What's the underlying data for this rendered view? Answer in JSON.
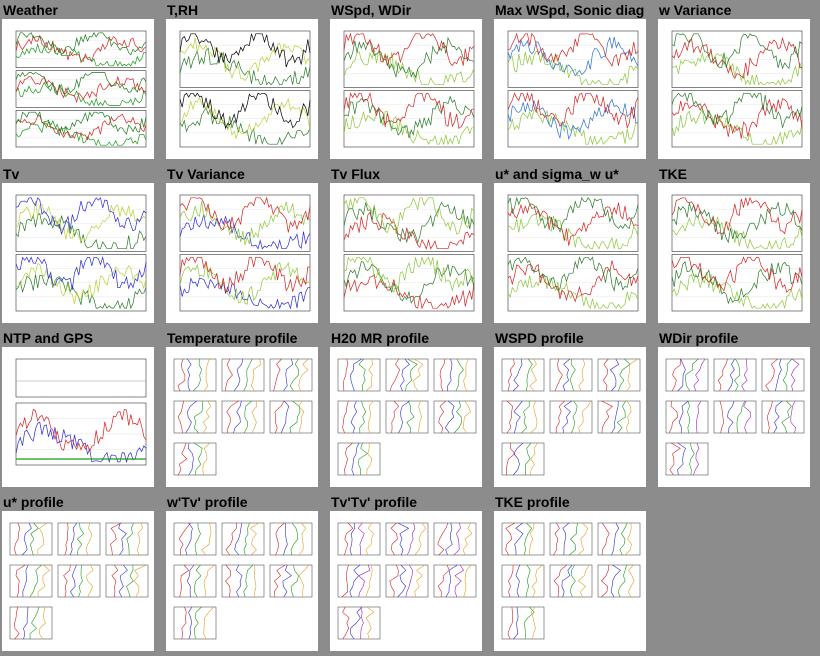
{
  "page_title": "",
  "tiles": [
    {
      "title": "Weather",
      "kind": "ts3",
      "colors": [
        "#1a9a1a",
        "#d62020",
        "#1a7a1a"
      ]
    },
    {
      "title": "T,RH",
      "kind": "ts2",
      "colors": [
        "#2a7a2a",
        "#b8d23a",
        "#000000"
      ]
    },
    {
      "title": "WSpd, WDir",
      "kind": "ts2",
      "colors": [
        "#8cc63a",
        "#2a7a2a",
        "#d62020"
      ]
    },
    {
      "title": "Max WSpd, Sonic diag",
      "kind": "ts2",
      "colors": [
        "#8cc63a",
        "#2a6fd6",
        "#d62020"
      ]
    },
    {
      "title": "w Variance",
      "kind": "ts2",
      "colors": [
        "#8cc63a",
        "#d62020",
        "#2a7a2a"
      ]
    },
    {
      "title": "Tv",
      "kind": "ts2",
      "colors": [
        "#2a7a2a",
        "#b8d23a",
        "#2a2ad6"
      ]
    },
    {
      "title": "Tv Variance",
      "kind": "ts2",
      "colors": [
        "#2a2ad6",
        "#8cc63a",
        "#d62020"
      ]
    },
    {
      "title": "Tv Flux",
      "kind": "ts2",
      "colors": [
        "#d62020",
        "#2a7a2a",
        "#8cc63a"
      ]
    },
    {
      "title": "u* and sigma_w u*",
      "kind": "ts2",
      "colors": [
        "#8cc63a",
        "#d62020",
        "#2a7a2a"
      ]
    },
    {
      "title": "TKE",
      "kind": "ts2",
      "colors": [
        "#8cc63a",
        "#2a7a2a",
        "#d62020"
      ]
    },
    {
      "title": "NTP and GPS",
      "kind": "ntp",
      "colors": [
        "#2a2ad6",
        "#d62020",
        "#1a9a1a"
      ]
    },
    {
      "title": "Temperature profile",
      "kind": "prof",
      "colors": [
        "#d62020",
        "#2a2ad6",
        "#1a9a1a",
        "#e0a020"
      ]
    },
    {
      "title": "H20 MR profile",
      "kind": "prof",
      "colors": [
        "#d62020",
        "#2a2ad6",
        "#1a9a1a",
        "#e0a020"
      ]
    },
    {
      "title": "WSPD profile",
      "kind": "prof",
      "colors": [
        "#d62020",
        "#2a2ad6",
        "#1a9a1a",
        "#e0a020"
      ]
    },
    {
      "title": "WDir profile",
      "kind": "prof",
      "colors": [
        "#d62020",
        "#2a2ad6",
        "#1a9a1a",
        "#a020c0"
      ]
    },
    {
      "title": "u* profile",
      "kind": "prof",
      "colors": [
        "#d62020",
        "#2a2ad6",
        "#1a9a1a",
        "#e0a020"
      ]
    },
    {
      "title": "w'Tv' profile",
      "kind": "prof",
      "colors": [
        "#d62020",
        "#2a2ad6",
        "#1a9a1a",
        "#e0a020"
      ]
    },
    {
      "title": "Tv'Tv' profile",
      "kind": "prof",
      "colors": [
        "#d62020",
        "#2a2ad6",
        "#a020c0",
        "#e0a020"
      ]
    },
    {
      "title": "TKE profile",
      "kind": "prof",
      "colors": [
        "#d62020",
        "#2a2ad6",
        "#1a9a1a",
        "#e0a020"
      ]
    }
  ]
}
